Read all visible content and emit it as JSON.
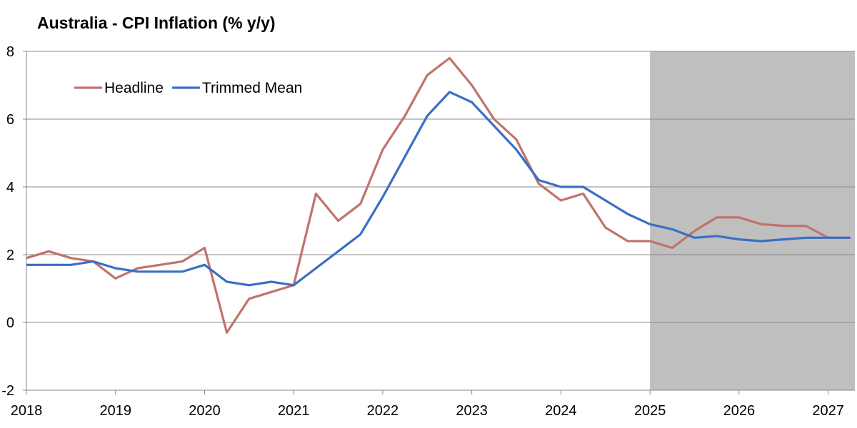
{
  "chart_data": {
    "type": "line",
    "title": "Australia - CPI Inflation (% y/y)",
    "xlabel": "",
    "ylabel": "",
    "ylim": [
      -2,
      8
    ],
    "xlim": [
      2018,
      2027.3
    ],
    "y_ticks": [
      "-2",
      "0",
      "2",
      "4",
      "6",
      "8"
    ],
    "x_ticks": [
      "2018",
      "2019",
      "2020",
      "2021",
      "2022",
      "2023",
      "2024",
      "2025",
      "2026",
      "2027"
    ],
    "grid": "horizontal",
    "legend_position": "top-left",
    "shaded_region": {
      "from": 2025,
      "to": 2027.3,
      "color": "#bfbfbf"
    },
    "series": [
      {
        "name": "Headline",
        "color": "#c0736b",
        "x": [
          2018,
          2018.25,
          2018.5,
          2018.75,
          2019,
          2019.25,
          2019.5,
          2019.75,
          2020,
          2020.25,
          2020.5,
          2020.75,
          2021,
          2021.25,
          2021.5,
          2021.75,
          2022,
          2022.25,
          2022.5,
          2022.75,
          2023,
          2023.25,
          2023.5,
          2023.75,
          2024,
          2024.25,
          2024.5,
          2024.75,
          2025,
          2025.25,
          2025.5,
          2025.75,
          2026,
          2026.25,
          2026.5,
          2026.75,
          2027,
          2027.25
        ],
        "values": [
          1.9,
          2.1,
          1.9,
          1.8,
          1.3,
          1.6,
          1.7,
          1.8,
          2.2,
          -0.3,
          0.7,
          0.9,
          1.1,
          3.8,
          3.0,
          3.5,
          5.1,
          6.1,
          7.3,
          7.8,
          7.0,
          6.0,
          5.4,
          4.1,
          3.6,
          3.8,
          2.8,
          2.4,
          2.4,
          2.2,
          2.7,
          3.1,
          3.1,
          2.9,
          2.85,
          2.85,
          2.5,
          2.5
        ]
      },
      {
        "name": "Trimmed Mean",
        "color": "#3a6fc4",
        "x": [
          2018,
          2018.25,
          2018.5,
          2018.75,
          2019,
          2019.25,
          2019.5,
          2019.75,
          2020,
          2020.25,
          2020.5,
          2020.75,
          2021,
          2021.25,
          2021.5,
          2021.75,
          2022,
          2022.25,
          2022.5,
          2022.75,
          2023,
          2023.25,
          2023.5,
          2023.75,
          2024,
          2024.25,
          2024.5,
          2024.75,
          2025,
          2025.25,
          2025.5,
          2025.75,
          2026,
          2026.25,
          2026.5,
          2026.75,
          2027,
          2027.25
        ],
        "values": [
          1.7,
          1.7,
          1.7,
          1.8,
          1.6,
          1.5,
          1.5,
          1.5,
          1.7,
          1.2,
          1.1,
          1.2,
          1.1,
          1.6,
          2.1,
          2.6,
          3.7,
          4.9,
          6.1,
          6.8,
          6.5,
          5.8,
          5.1,
          4.2,
          4.0,
          4.0,
          3.6,
          3.2,
          2.9,
          2.75,
          2.5,
          2.55,
          2.45,
          2.4,
          2.45,
          2.5,
          2.5,
          2.5
        ]
      }
    ]
  }
}
